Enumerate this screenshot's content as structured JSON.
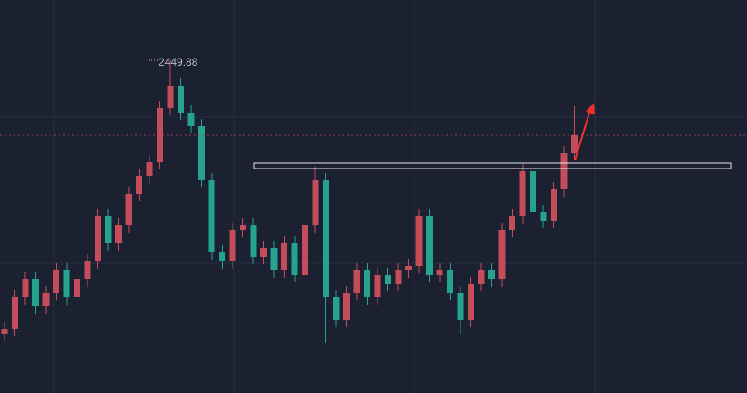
{
  "chart_data": {
    "type": "candlestick",
    "up_color": "#c44d5b",
    "down_color": "#26a38f",
    "ylim": [
      2265,
      2483
    ],
    "open": [
      2298,
      2300.5,
      2318,
      2328,
      2313,
      2320.5,
      2333,
      2318,
      2328,
      2338,
      2363,
      2348,
      2358,
      2375.5,
      2385.5,
      2393,
      2423,
      2435.5,
      2420.5,
      2413,
      2383,
      2343,
      2338,
      2355.5,
      2358,
      2340.5,
      2345.5,
      2333,
      2348,
      2330.5,
      2358,
      2383,
      2318,
      2305.5,
      2320.5,
      2333,
      2318,
      2330.5,
      2325.5,
      2333,
      2335.5,
      2363,
      2330.5,
      2333,
      2320.5,
      2305.5,
      2325.5,
      2333,
      2328,
      2355.5,
      2363,
      2388,
      2365.5,
      2360.5,
      2378,
      2398
    ],
    "high": [
      2304.5,
      2322,
      2332,
      2332,
      2324.5,
      2337,
      2337,
      2332,
      2342,
      2367,
      2367,
      2362,
      2379.5,
      2389.5,
      2397,
      2427,
      2449.88,
      2439.5,
      2424.5,
      2417,
      2387,
      2347,
      2359.5,
      2362,
      2362,
      2349.5,
      2349.5,
      2352,
      2352,
      2362,
      2390.5,
      2387,
      2322,
      2324.5,
      2337,
      2337,
      2334.5,
      2334.5,
      2337,
      2339.5,
      2367,
      2367,
      2337,
      2337,
      2324.5,
      2329.5,
      2337,
      2337,
      2359.5,
      2367,
      2392,
      2392,
      2369.5,
      2382,
      2402,
      2424
    ],
    "low": [
      2294,
      2296.5,
      2314,
      2309,
      2309,
      2316.5,
      2314,
      2314,
      2324,
      2334,
      2344,
      2344,
      2354,
      2371.5,
      2381.5,
      2389,
      2419,
      2416.5,
      2409,
      2379,
      2339,
      2334,
      2334,
      2351.5,
      2336.5,
      2336.5,
      2329,
      2329,
      2326.5,
      2326.5,
      2354,
      2293,
      2301.5,
      2301.5,
      2316.5,
      2314,
      2314,
      2321.5,
      2321.5,
      2329,
      2331.5,
      2326.5,
      2326.5,
      2316.5,
      2298,
      2301.5,
      2321.5,
      2324,
      2324,
      2351.5,
      2359,
      2361.5,
      2356.5,
      2356.5,
      2374,
      2394
    ],
    "close": [
      2300.5,
      2318,
      2328,
      2313,
      2320.5,
      2333,
      2318,
      2328,
      2338,
      2363,
      2348,
      2358,
      2375.5,
      2385.5,
      2393,
      2423,
      2435.5,
      2420.5,
      2413,
      2383,
      2343,
      2338,
      2355.5,
      2358,
      2340.5,
      2345.5,
      2333,
      2348,
      2330.5,
      2358,
      2383,
      2318,
      2305.5,
      2320.5,
      2333,
      2318,
      2330.5,
      2325.5,
      2333,
      2335.5,
      2363,
      2330.5,
      2333,
      2320.5,
      2305.5,
      2325.5,
      2333,
      2328,
      2355.5,
      2363,
      2388,
      2365.5,
      2360.5,
      2378,
      2398,
      2408
    ]
  }
}
